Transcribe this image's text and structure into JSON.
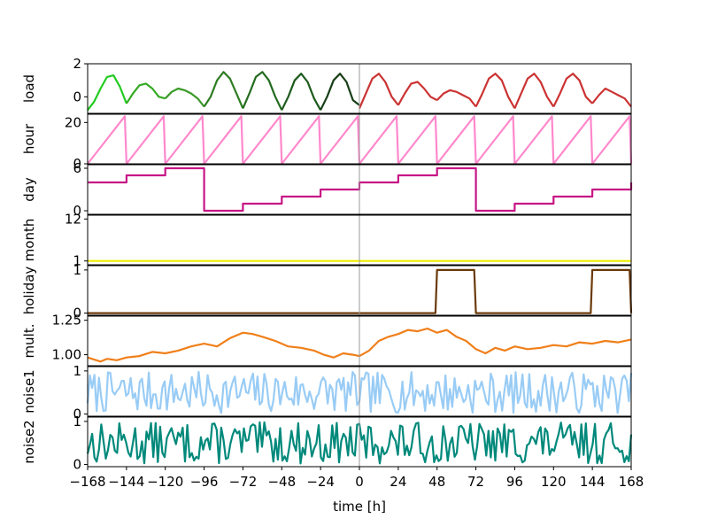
{
  "chart_data": {
    "type": "line",
    "xlabel": "time [h]",
    "xlim": [
      -168,
      168
    ],
    "xticks": [
      -168,
      -144,
      -120,
      -96,
      -72,
      -48,
      -24,
      0,
      24,
      48,
      72,
      96,
      120,
      144,
      168
    ],
    "xtick_labels": [
      "−168",
      "−144",
      "−120",
      "−96",
      "−72",
      "−48",
      "−24",
      "0",
      "24",
      "48",
      "72",
      "96",
      "120",
      "144",
      "168"
    ],
    "vertical_marker_x": 0,
    "grid": false,
    "panels": [
      {
        "ylabel": "load",
        "ylim": [
          -1,
          2
        ],
        "yticks": [
          0,
          2
        ],
        "ytick_labels": [
          "0",
          "2"
        ],
        "series": [
          {
            "color": "#22cc22",
            "x": [
              -168,
              -164,
              -160,
              -156,
              -152,
              -148,
              -144
            ],
            "y": [
              -0.8,
              -0.3,
              0.5,
              1.2,
              1.3,
              0.6,
              -0.4
            ]
          },
          {
            "color": "#33aa22",
            "x": [
              -144,
              -140,
              -136,
              -132,
              -128,
              -124,
              -120
            ],
            "y": [
              -0.4,
              0.2,
              0.7,
              0.8,
              0.5,
              0.0,
              -0.1
            ]
          },
          {
            "color": "#3a9a28",
            "x": [
              -120,
              -116,
              -112,
              -108,
              -104,
              -100,
              -96
            ],
            "y": [
              -0.1,
              0.3,
              0.5,
              0.4,
              0.2,
              -0.1,
              -0.6
            ]
          },
          {
            "color": "#2e7d22",
            "x": [
              -96,
              -92,
              -88,
              -84,
              -80,
              -76,
              -72
            ],
            "y": [
              -0.6,
              0.0,
              1.0,
              1.5,
              1.1,
              0.2,
              -0.7
            ]
          },
          {
            "color": "#236b1f",
            "x": [
              -72,
              -68,
              -64,
              -60,
              -56,
              -52,
              -48
            ],
            "y": [
              -0.7,
              0.2,
              1.2,
              1.5,
              1.0,
              0.0,
              -0.8
            ]
          },
          {
            "color": "#1d5a1c",
            "x": [
              -48,
              -44,
              -40,
              -36,
              -32,
              -28,
              -24
            ],
            "y": [
              -0.8,
              0.0,
              1.0,
              1.4,
              0.9,
              -0.1,
              -0.8
            ]
          },
          {
            "color": "#173e17",
            "x": [
              -24,
              -20,
              -16,
              -12,
              -8,
              -4,
              0
            ],
            "y": [
              -0.8,
              0.0,
              1.0,
              1.4,
              0.9,
              -0.2,
              -0.5
            ]
          },
          {
            "color": "#cc3333",
            "x": [
              0,
              4,
              8,
              12,
              16,
              20,
              24
            ],
            "y": [
              -0.7,
              0.2,
              1.1,
              1.4,
              0.9,
              0.0,
              -0.5
            ]
          },
          {
            "color": "#cc3333",
            "x": [
              24,
              28,
              32,
              36,
              40,
              44,
              48
            ],
            "y": [
              -0.5,
              0.2,
              0.8,
              0.9,
              0.5,
              0.0,
              -0.2
            ]
          },
          {
            "color": "#cc3333",
            "x": [
              48,
              52,
              56,
              60,
              64,
              68,
              72
            ],
            "y": [
              -0.2,
              0.2,
              0.4,
              0.3,
              0.1,
              -0.1,
              -0.6
            ]
          },
          {
            "color": "#cc3333",
            "x": [
              72,
              76,
              80,
              84,
              88,
              92,
              96
            ],
            "y": [
              -0.6,
              0.2,
              1.1,
              1.4,
              1.0,
              0.0,
              -0.7
            ]
          },
          {
            "color": "#cc3333",
            "x": [
              96,
              100,
              104,
              108,
              112,
              116,
              120
            ],
            "y": [
              -0.7,
              0.2,
              1.1,
              1.4,
              0.9,
              0.0,
              -0.6
            ]
          },
          {
            "color": "#cc3333",
            "x": [
              120,
              124,
              128,
              132,
              136,
              140,
              144
            ],
            "y": [
              -0.6,
              0.2,
              1.1,
              1.4,
              1.0,
              0.0,
              -0.4
            ]
          },
          {
            "color": "#cc3333",
            "x": [
              144,
              148,
              152,
              156,
              160,
              164,
              168
            ],
            "y": [
              -0.4,
              0.1,
              0.5,
              0.3,
              0.1,
              -0.1,
              -0.6
            ]
          }
        ]
      },
      {
        "ylabel": "hour",
        "ylim": [
          0,
          24
        ],
        "yticks": [
          0,
          20
        ],
        "ytick_labels": [
          "0",
          "20"
        ],
        "series": [
          {
            "color": "#ff88cc",
            "x": [
              -168,
              -145,
              -145,
              -144,
              -121,
              -121,
              -120,
              -97,
              -97,
              -96,
              -73,
              -73,
              -72,
              -49,
              -49,
              -48,
              -25,
              -25,
              -24,
              -1,
              -1,
              0,
              23,
              23,
              24,
              47,
              47,
              48,
              71,
              71,
              72,
              95,
              95,
              96,
              119,
              119,
              120,
              143,
              143,
              144,
              167,
              167,
              168
            ],
            "y": [
              0,
              23,
              23,
              0,
              23,
              23,
              0,
              23,
              23,
              0,
              23,
              23,
              0,
              23,
              23,
              0,
              23,
              23,
              0,
              23,
              23,
              0,
              23,
              23,
              0,
              23,
              23,
              0,
              23,
              23,
              0,
              23,
              23,
              0,
              23,
              23,
              0,
              23,
              23,
              0,
              23,
              23,
              0
            ]
          }
        ]
      },
      {
        "ylabel": "day",
        "ylim": [
          -0.5,
          6.5
        ],
        "yticks": [
          0,
          6
        ],
        "ytick_labels": [
          "0",
          "6"
        ],
        "series": [
          {
            "color": "#c71585",
            "x": [
              -168,
              -144,
              -144,
              -120,
              -120,
              -96,
              -96,
              -72,
              -72,
              -48,
              -48,
              -24,
              -24,
              0,
              0,
              24,
              24,
              48,
              48,
              72,
              72,
              96,
              96,
              120,
              120,
              144,
              144,
              168,
              168
            ],
            "y": [
              4,
              4,
              5,
              5,
              6,
              6,
              0,
              0,
              1,
              1,
              2,
              2,
              3,
              3,
              4,
              4,
              5,
              5,
              6,
              6,
              0,
              0,
              1,
              1,
              2,
              2,
              3,
              3,
              4
            ]
          }
        ]
      },
      {
        "ylabel": "month",
        "ylim": [
          0,
          13
        ],
        "yticks": [
          1,
          12
        ],
        "ytick_labels": [
          "1",
          "12"
        ],
        "series": [
          {
            "color": "#eeee00",
            "x": [
              -168,
              168
            ],
            "y": [
              1,
              1
            ]
          }
        ]
      },
      {
        "ylabel": "holiday",
        "ylim": [
          -0.05,
          1.1
        ],
        "yticks": [
          0,
          1
        ],
        "ytick_labels": [
          "0",
          "1"
        ],
        "series": [
          {
            "color": "#6b3a0a",
            "x": [
              -168,
              47,
              48,
              71,
              72,
              143,
              144,
              167,
              168
            ],
            "y": [
              0,
              0,
              1,
              1,
              0,
              0,
              1,
              1,
              0
            ]
          }
        ]
      },
      {
        "ylabel": "mult.",
        "ylim": [
          0.92,
          1.28
        ],
        "yticks": [
          1.0,
          1.25
        ],
        "ytick_labels": [
          "1.00",
          "1.25"
        ],
        "series": [
          {
            "color": "#f07f1a",
            "x": [
              -168,
              -160,
              -156,
              -150,
              -144,
              -136,
              -128,
              -120,
              -112,
              -104,
              -96,
              -88,
              -80,
              -72,
              -66,
              -60,
              -52,
              -44,
              -36,
              -28,
              -22,
              -16,
              -10,
              -4,
              0,
              6,
              12,
              18,
              24,
              30,
              36,
              42,
              48,
              54,
              60,
              66,
              72,
              78,
              84,
              90,
              96,
              104,
              112,
              120,
              128,
              136,
              144,
              152,
              160,
              168
            ],
            "y": [
              0.98,
              0.95,
              0.97,
              0.96,
              0.98,
              0.99,
              1.02,
              1.01,
              1.03,
              1.06,
              1.08,
              1.06,
              1.12,
              1.16,
              1.15,
              1.13,
              1.1,
              1.06,
              1.05,
              1.03,
              1.0,
              0.98,
              1.01,
              1.0,
              0.99,
              1.03,
              1.1,
              1.13,
              1.15,
              1.18,
              1.17,
              1.19,
              1.16,
              1.18,
              1.13,
              1.1,
              1.04,
              1.01,
              1.05,
              1.03,
              1.06,
              1.04,
              1.05,
              1.07,
              1.06,
              1.09,
              1.08,
              1.1,
              1.09,
              1.11
            ]
          }
        ]
      },
      {
        "ylabel": "noise1",
        "ylim": [
          -0.05,
          1.1
        ],
        "yticks": [
          0,
          1
        ],
        "ytick_labels": [
          "0",
          "1"
        ],
        "noise": true,
        "series": [
          {
            "color": "#99ccf5",
            "seed": 7,
            "x_range": [
              -168,
              168
            ],
            "samples": 240,
            "y_range": [
              0.02,
              0.98
            ]
          }
        ]
      },
      {
        "ylabel": "noise2",
        "ylim": [
          -0.05,
          1.1
        ],
        "yticks": [
          0,
          1
        ],
        "ytick_labels": [
          "0",
          "1"
        ],
        "noise": true,
        "series": [
          {
            "color": "#00897b",
            "seed": 13,
            "x_range": [
              -168,
              168
            ],
            "samples": 240,
            "y_range": [
              0.02,
              0.98
            ]
          }
        ]
      }
    ]
  }
}
